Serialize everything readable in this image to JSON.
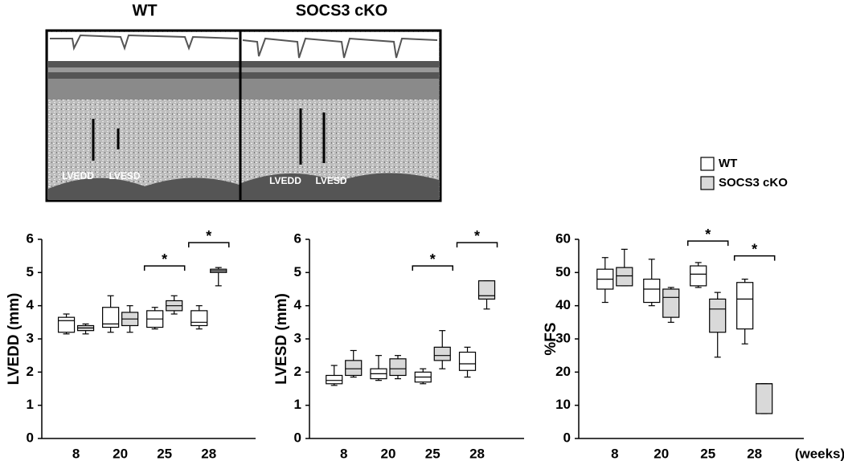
{
  "panels": {
    "titles": [
      "WT",
      "SOCS3 cKO"
    ],
    "image_labels": [
      [
        "LVEDD",
        "LVESD"
      ],
      [
        "LVEDD",
        "LVESD"
      ]
    ]
  },
  "chart_data": [
    {
      "type": "box",
      "ylabel": "LVEDD (mm)",
      "categories": [
        "8",
        "20",
        "25",
        "28"
      ],
      "ylim": [
        0,
        6
      ],
      "yticks": [
        0,
        1,
        2,
        3,
        4,
        5,
        6
      ],
      "series": [
        {
          "name": "WT",
          "color": "#ffffff",
          "values": [
            [
              3.15,
              3.2,
              3.55,
              3.65,
              3.75
            ],
            [
              3.2,
              3.35,
              3.45,
              3.95,
              4.3
            ],
            [
              3.3,
              3.35,
              3.6,
              3.85,
              3.95
            ],
            [
              3.3,
              3.4,
              3.5,
              3.85,
              4.0
            ]
          ]
        },
        {
          "name": "SOCS3 cKO",
          "color": "#d9d9d9",
          "values": [
            [
              3.15,
              3.25,
              3.33,
              3.4,
              3.45
            ],
            [
              3.2,
              3.4,
              3.6,
              3.8,
              4.0
            ],
            [
              3.75,
              3.85,
              4.0,
              4.15,
              4.3
            ],
            [
              4.6,
              5.0,
              5.05,
              5.1,
              5.15
            ]
          ]
        }
      ],
      "annotations": [
        {
          "text": "*",
          "category": "25",
          "y": 5.2
        },
        {
          "text": "*",
          "category": "28",
          "y": 5.9
        }
      ]
    },
    {
      "type": "box",
      "ylabel": "LVESD (mm)",
      "categories": [
        "8",
        "20",
        "25",
        "28"
      ],
      "ylim": [
        0,
        6
      ],
      "yticks": [
        0,
        1,
        2,
        3,
        4,
        5,
        6
      ],
      "series": [
        {
          "name": "WT",
          "color": "#ffffff",
          "values": [
            [
              1.6,
              1.65,
              1.75,
              1.9,
              2.2
            ],
            [
              1.75,
              1.8,
              1.95,
              2.1,
              2.5
            ],
            [
              1.65,
              1.7,
              1.85,
              2.0,
              2.1
            ],
            [
              1.85,
              2.05,
              2.25,
              2.6,
              2.75
            ]
          ]
        },
        {
          "name": "SOCS3 cKO",
          "color": "#d9d9d9",
          "values": [
            [
              1.85,
              1.9,
              2.1,
              2.35,
              2.65
            ],
            [
              1.8,
              1.9,
              2.1,
              2.4,
              2.5
            ],
            [
              2.1,
              2.35,
              2.5,
              2.75,
              3.25
            ],
            [
              3.9,
              4.2,
              4.3,
              4.75,
              4.75
            ]
          ]
        }
      ],
      "annotations": [
        {
          "text": "*",
          "category": "25",
          "y": 5.2
        },
        {
          "text": "*",
          "category": "28",
          "y": 5.9
        }
      ]
    },
    {
      "type": "box",
      "ylabel": "%FS",
      "xlabel": "(weeks)",
      "categories": [
        "8",
        "20",
        "25",
        "28"
      ],
      "ylim": [
        0,
        60
      ],
      "yticks": [
        0,
        10,
        20,
        30,
        40,
        50,
        60
      ],
      "series": [
        {
          "name": "WT",
          "color": "#ffffff",
          "values": [
            [
              41,
              45,
              48,
              51,
              54.5
            ],
            [
              40,
              41,
              45,
              48,
              54
            ],
            [
              45.5,
              46,
              49.5,
              52,
              53
            ],
            [
              28.5,
              33,
              42,
              47,
              48
            ]
          ]
        },
        {
          "name": "SOCS3 cKO",
          "color": "#d9d9d9",
          "values": [
            [
              46,
              46,
              49,
              51.5,
              57
            ],
            [
              35,
              36.5,
              42.5,
              45,
              45.5
            ],
            [
              24.5,
              32,
              39,
              42,
              44
            ],
            [
              7.5,
              7.5,
              16.5,
              16.5,
              16.5
            ]
          ]
        }
      ],
      "annotations": [
        {
          "text": "*",
          "category": "25",
          "y": 59.5
        },
        {
          "text": "*",
          "category": "28",
          "y": 55
        }
      ]
    }
  ]
}
